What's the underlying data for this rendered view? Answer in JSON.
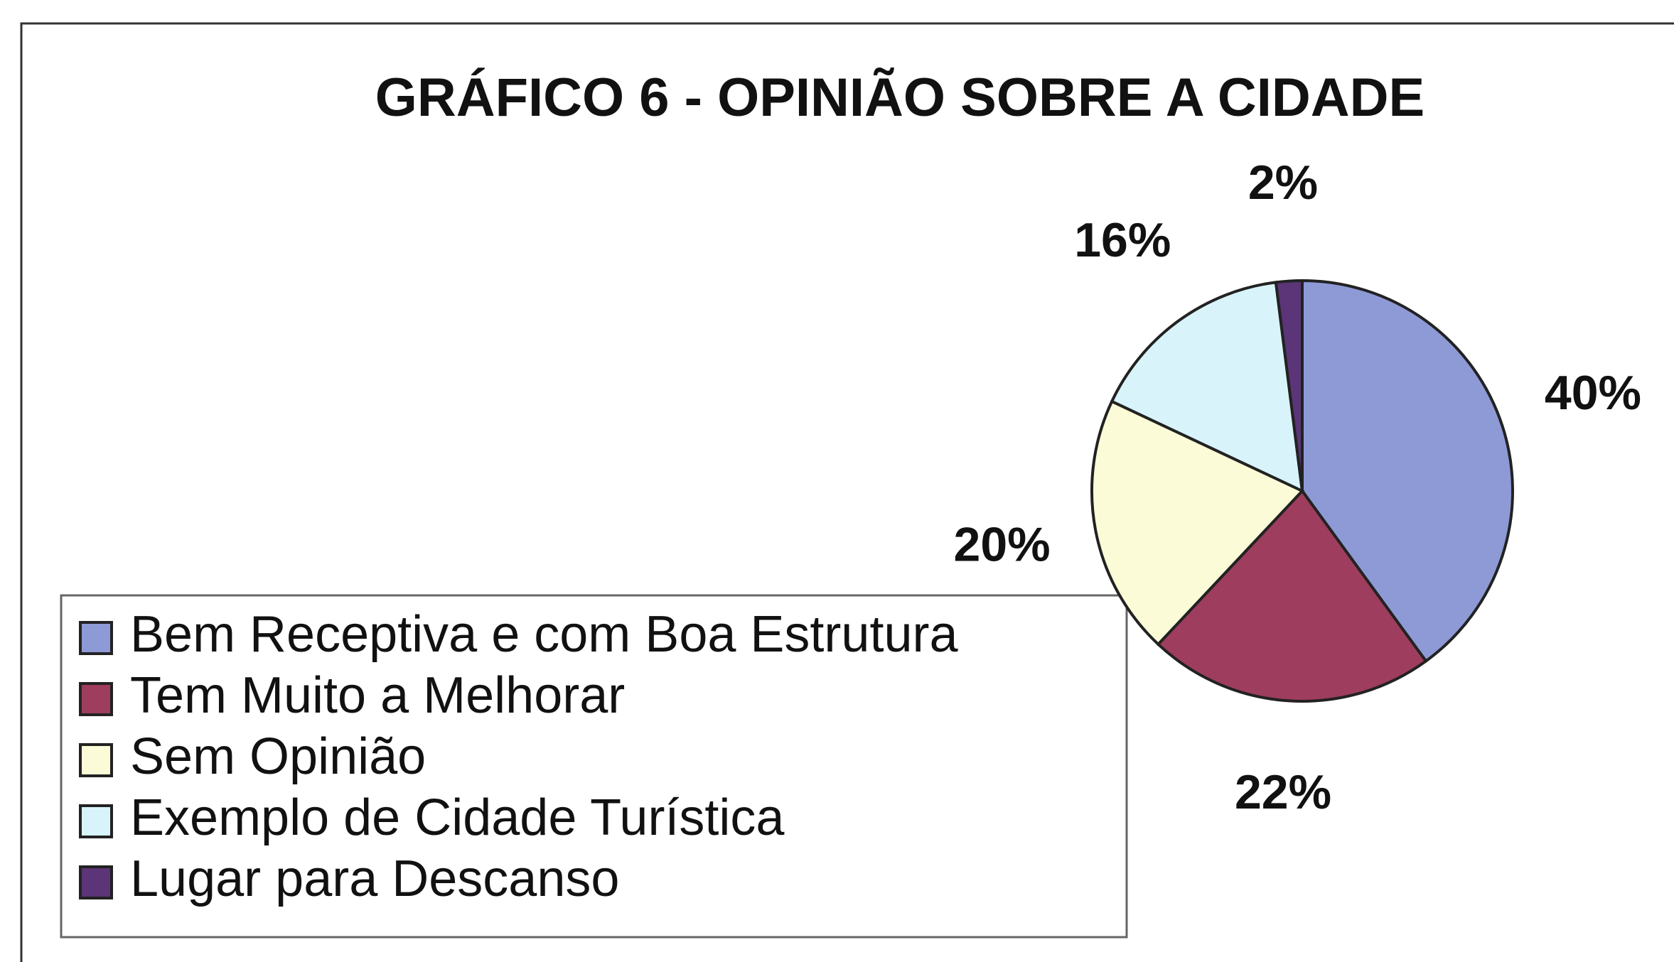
{
  "chart_data": {
    "type": "pie",
    "title": "GRÁFICO 6 - OPINIÃO SOBRE A CIDADE",
    "categories": [
      "Bem Receptiva e com Boa Estrutura",
      "Tem Muito a Melhorar",
      "Sem Opinião",
      "Exemplo de Cidade Turística",
      "Lugar para Descanso"
    ],
    "values": [
      40,
      22,
      20,
      16,
      2
    ],
    "value_labels": [
      "40%",
      "22%",
      "20%",
      "16%",
      "2%"
    ],
    "colors": [
      "#8e9ad6",
      "#9e3d5e",
      "#fbfbd8",
      "#d8f4fa",
      "#5b3577"
    ],
    "legend": "bottom-left"
  }
}
